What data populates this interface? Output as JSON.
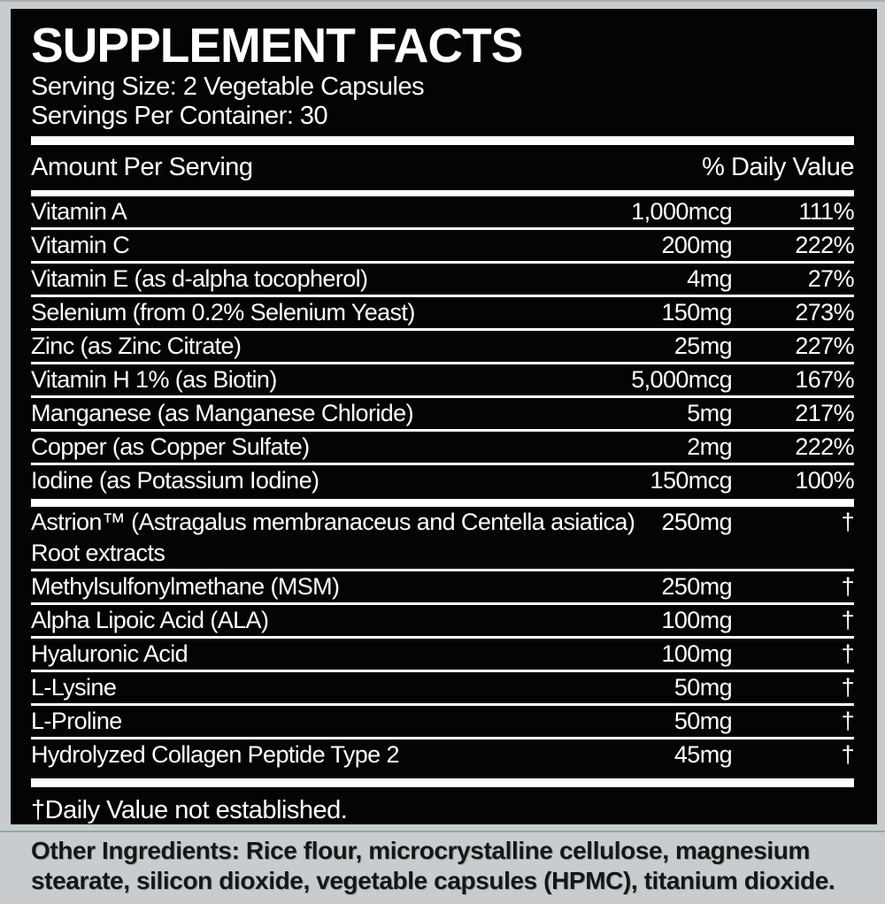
{
  "panel": {
    "title": "SUPPLEMENT FACTS",
    "serving_size": "Serving Size: 2 Vegetable Capsules",
    "servings_per_container": "Servings Per Container: 30",
    "header": {
      "left": "Amount Per Serving",
      "right": "% Daily Value"
    },
    "rows_main": [
      {
        "name": "Vitamin A",
        "name2": "",
        "amount": "1,000mcg",
        "dv": "111%"
      },
      {
        "name": "Vitamin C",
        "name2": "",
        "amount": "200mg",
        "dv": "222%"
      },
      {
        "name": "Vitamin E (as d-alpha tocopherol)",
        "name2": "",
        "amount": "4mg",
        "dv": "27%"
      },
      {
        "name": "Selenium (from 0.2% Selenium Yeast)",
        "name2": "",
        "amount": "150mg",
        "dv": "273%"
      },
      {
        "name": "Zinc (as Zinc Citrate)",
        "name2": "",
        "amount": "25mg",
        "dv": "227%"
      },
      {
        "name": "Vitamin H 1% (as Biotin)",
        "name2": "",
        "amount": "5,000mcg",
        "dv": "167%"
      },
      {
        "name": "Manganese (as Manganese Chloride)",
        "name2": "",
        "amount": "5mg",
        "dv": "217%"
      },
      {
        "name": "Copper (as Copper Sulfate)",
        "name2": "",
        "amount": "2mg",
        "dv": "222%"
      },
      {
        "name": "Iodine (as Potassium Iodine)",
        "name2": "",
        "amount": "150mcg",
        "dv": "100%"
      }
    ],
    "rows_blend": [
      {
        "name": "Astrion™ (Astragalus membranaceus and Centella asiatica)",
        "name2": "Root extracts",
        "amount": "250mg",
        "dv": "†"
      },
      {
        "name": "Methylsulfonylmethane (MSM)",
        "name2": "",
        "amount": "250mg",
        "dv": "†"
      },
      {
        "name": "Alpha Lipoic Acid (ALA)",
        "name2": "",
        "amount": "100mg",
        "dv": "†"
      },
      {
        "name": "Hyaluronic Acid",
        "name2": "",
        "amount": "100mg",
        "dv": "†"
      },
      {
        "name": "L-Lysine",
        "name2": "",
        "amount": "50mg",
        "dv": "†"
      },
      {
        "name": "L-Proline",
        "name2": "",
        "amount": "50mg",
        "dv": "†"
      },
      {
        "name": "Hydrolyzed Collagen Peptide Type 2",
        "name2": "",
        "amount": "45mg",
        "dv": "†"
      }
    ],
    "footnote": "†Daily Value not established."
  },
  "other_ingredients": {
    "text": "Other Ingredients: Rice flour, microcrystalline cellulose, magnesium stearate, silicon dioxide, vegetable capsules (HPMC), titanium dioxide."
  },
  "colors": {
    "label_bg": "#c8ccce",
    "panel_bg": "#040404",
    "panel_text": "#ffffff",
    "divider": "#ffffff",
    "ingredients_text": "#161616",
    "bottom_line": "#85a093"
  }
}
